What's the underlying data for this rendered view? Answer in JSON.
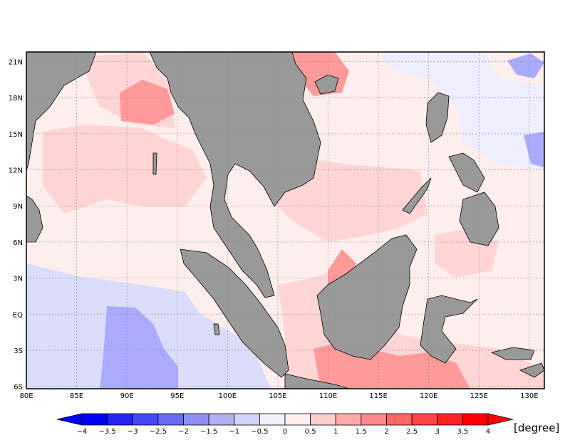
{
  "map": {
    "lon_labels": [
      "80E",
      "85E",
      "90E",
      "95E",
      "100E",
      "105E",
      "110E",
      "115E",
      "120E",
      "125E",
      "130E"
    ],
    "lat_labels": [
      "21N",
      "18N",
      "15N",
      "12N",
      "9N",
      "6N",
      "3N",
      "EQ",
      "3S",
      "6S"
    ],
    "lon_range": [
      80,
      131.5
    ],
    "lat_range": [
      -6.2,
      21.8
    ],
    "grid": "dotted",
    "land_color": "#999999",
    "colors": {
      "strong_blue": "#aaaaff",
      "light_blue": "#dcdcfb",
      "very_light_blue": "#eeeefe",
      "very_light_pink": "#ffeeee",
      "light_pink": "#ffd5d5",
      "pink": "#ffbdbd",
      "red": "#ff9a9a"
    }
  },
  "colorbar": {
    "tick_labels": [
      "−4",
      "−3.5",
      "−3",
      "−2.5",
      "−2",
      "−1.5",
      "−1",
      "−0.5",
      "0",
      "0.5",
      "1",
      "1.5",
      "2",
      "2.5",
      "3",
      "3.5",
      "4"
    ],
    "colors": [
      "#0000f5",
      "#2424f5",
      "#4747f5",
      "#6a6af5",
      "#8e8ef5",
      "#b0b0f5",
      "#d2d2f8",
      "#f0f0fe",
      "#ffeeee",
      "#ffcccc",
      "#ffaaaa",
      "#ff8888",
      "#ff6666",
      "#ff4444",
      "#ff2222",
      "#ff0000"
    ],
    "under_color": "#0000ff",
    "over_color": "#ff0000",
    "units": "[degree]"
  }
}
